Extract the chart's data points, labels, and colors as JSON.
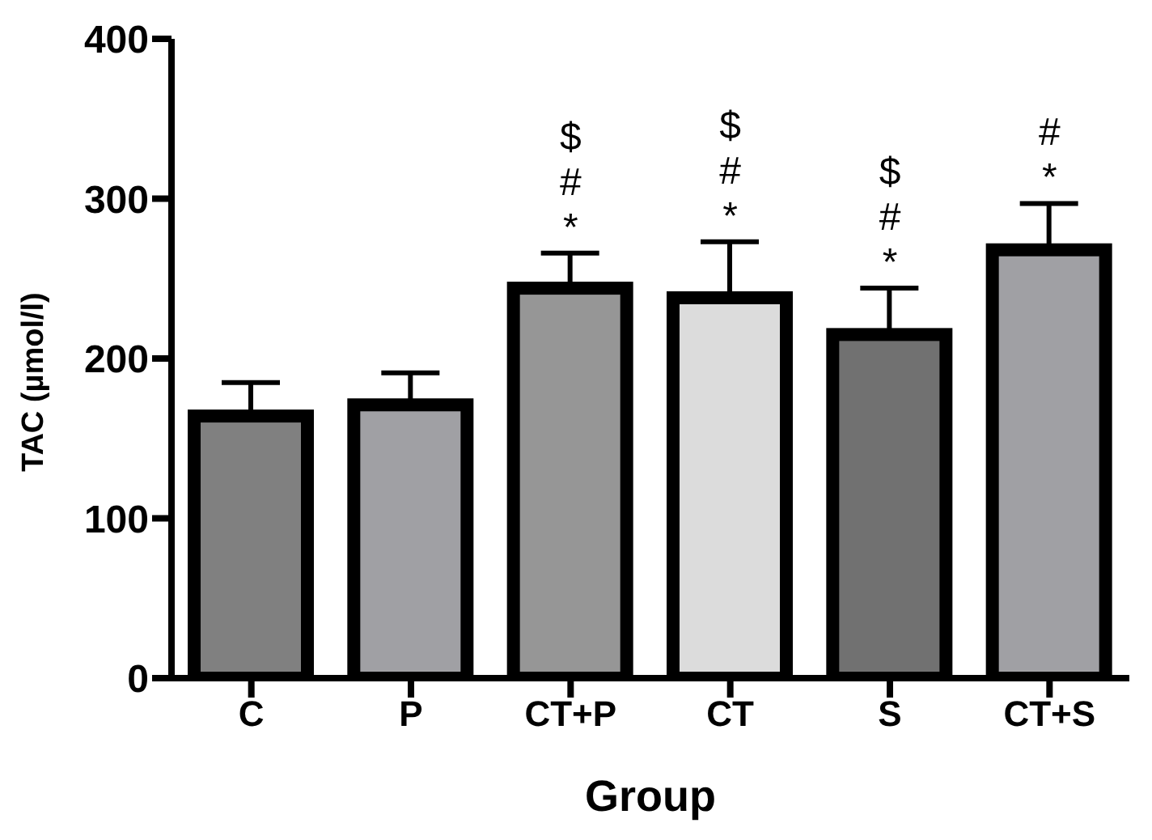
{
  "chart_data": {
    "type": "bar",
    "xlabel": "Group",
    "ylabel": "TAC (µmol/l)",
    "categories": [
      "C",
      "P",
      "CT+P",
      "CT",
      "S",
      "CT+S"
    ],
    "values": [
      164,
      171,
      244,
      238,
      215,
      268
    ],
    "errors": [
      [
        164,
        185
      ],
      [
        171,
        191
      ],
      [
        244,
        266
      ],
      [
        238,
        273
      ],
      [
        215,
        244
      ],
      [
        268,
        297
      ]
    ],
    "value_labels": [
      null,
      null,
      "$\n#\n*",
      "$\n#\n*",
      "$\n#\n*",
      "#\n*"
    ],
    "colors": [
      "#808080",
      "#a0a0a4",
      "#969696",
      "#dcdcdc",
      "#717171",
      "#a0a0a4"
    ],
    "ylim": [
      0,
      400
    ],
    "yticks": [
      0,
      100,
      200,
      300,
      400
    ],
    "grid": false,
    "legend": false
  }
}
